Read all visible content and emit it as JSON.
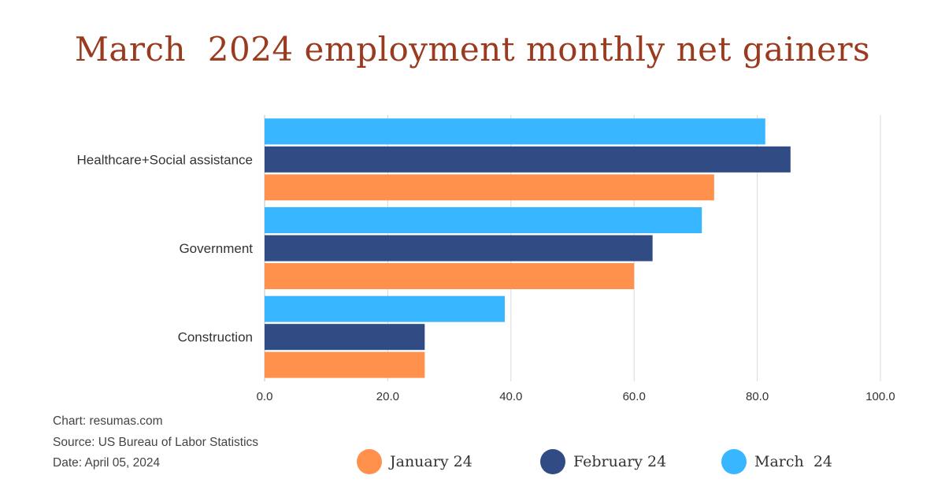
{
  "chart_data": {
    "type": "bar",
    "orientation": "horizontal",
    "title": "March  2024 employment monthly net gainers",
    "categories": [
      "Healthcare+Social assistance",
      "Government",
      "Construction"
    ],
    "series": [
      {
        "name": "March  24",
        "color": "#38b6ff",
        "values": [
          81.3,
          71.0,
          39.0
        ]
      },
      {
        "name": "February 24",
        "color": "#314b84",
        "values": [
          85.4,
          63.0,
          26.0
        ]
      },
      {
        "name": "January 24",
        "color": "#ff914d",
        "values": [
          73.0,
          60.0,
          26.0
        ]
      }
    ],
    "xlim": [
      0,
      100
    ],
    "xticks": [
      "0.0",
      "20.0",
      "40.0",
      "60.0",
      "80.0",
      "100.0"
    ],
    "xtick_values": [
      0,
      20,
      40,
      60,
      80,
      100
    ],
    "grid": true,
    "legend_position": "bottom"
  },
  "legend": [
    {
      "label": "January 24",
      "color": "#ff914d"
    },
    {
      "label": "February 24",
      "color": "#314b84"
    },
    {
      "label": "March  24",
      "color": "#38b6ff"
    }
  ],
  "footer": {
    "chart_credit": "Chart: resumas.com",
    "source": "Source: US Bureau of Labor Statistics",
    "date": "Date: April 05, 2024"
  }
}
